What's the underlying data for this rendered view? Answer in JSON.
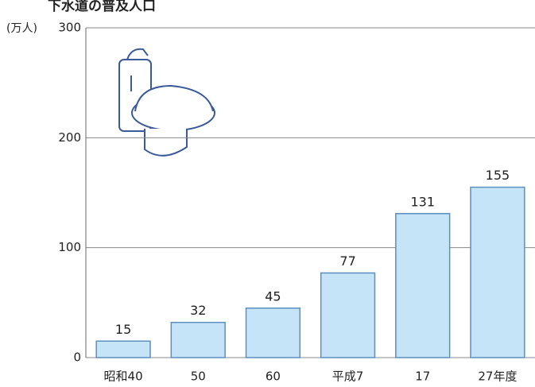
{
  "chart_data": {
    "type": "bar",
    "title": "下水道の普及人口",
    "y_label": "(万人)",
    "categories": [
      "昭和40",
      "50",
      "60",
      "平成7",
      "17",
      "27年度"
    ],
    "values": [
      15,
      32,
      45,
      77,
      131,
      155
    ],
    "color": "#c6e4f7",
    "ylim": [
      0,
      300
    ],
    "yticks": [
      0,
      100,
      200,
      300
    ],
    "grid": true
  }
}
